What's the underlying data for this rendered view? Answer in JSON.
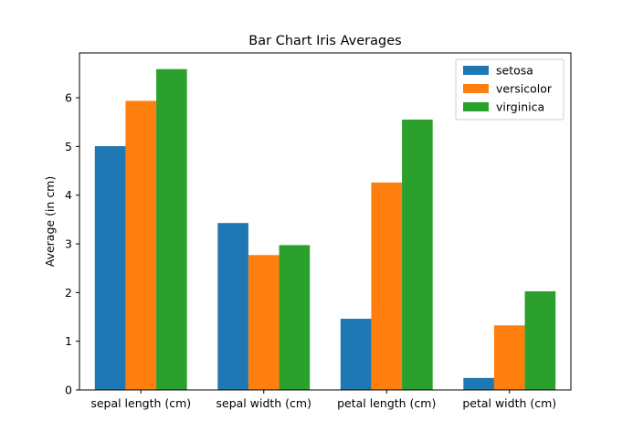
{
  "chart_data": {
    "type": "bar",
    "title": "Bar Chart Iris Averages",
    "xlabel": "",
    "ylabel": "Average (in cm)",
    "categories": [
      "sepal length (cm)",
      "sepal width (cm)",
      "petal length (cm)",
      "petal width (cm)"
    ],
    "series": [
      {
        "name": "setosa",
        "color": "#1f77b4",
        "values": [
          5.006,
          3.428,
          1.462,
          0.246
        ]
      },
      {
        "name": "versicolor",
        "color": "#ff7f0e",
        "values": [
          5.936,
          2.77,
          4.26,
          1.326
        ]
      },
      {
        "name": "virginica",
        "color": "#2ca02c",
        "values": [
          6.588,
          2.974,
          5.552,
          2.026
        ]
      }
    ],
    "ylim": [
      0,
      6.92
    ],
    "yticks": [
      0,
      1,
      2,
      3,
      4,
      5,
      6
    ],
    "grid": false,
    "legend_position": "upper-right"
  }
}
